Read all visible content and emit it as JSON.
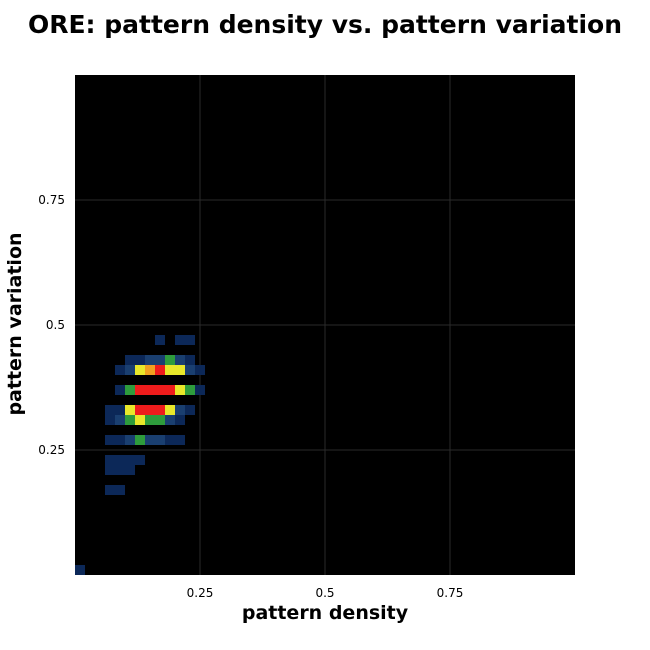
{
  "chart_data": {
    "type": "heatmap",
    "title": "ORE: pattern density vs. pattern variation",
    "xlabel": "pattern density",
    "ylabel": "pattern variation",
    "xlim": [
      0,
      1
    ],
    "ylim": [
      0,
      1
    ],
    "bin_size": 0.02,
    "xticks": [
      0.25,
      0.5,
      0.75
    ],
    "yticks": [
      0.25,
      0.5,
      0.75
    ],
    "xtick_labels": [
      "0.25",
      "0.5",
      "0.75"
    ],
    "ytick_labels": [
      "0.25",
      "0.5",
      "0.75"
    ],
    "grid": true,
    "background_color": "#000000",
    "grid_color": "#2a2a2a",
    "colormap": [
      "#0c2858",
      "#1a3f70",
      "#2e9c3c",
      "#e8e82a",
      "#f0a020",
      "#ee1c1c"
    ],
    "cells": [
      {
        "x": 0.0,
        "y": 0.0,
        "v": 1
      },
      {
        "x": 0.06,
        "y": 0.16,
        "v": 1
      },
      {
        "x": 0.08,
        "y": 0.16,
        "v": 1
      },
      {
        "x": 0.06,
        "y": 0.2,
        "v": 1
      },
      {
        "x": 0.08,
        "y": 0.2,
        "v": 1
      },
      {
        "x": 0.1,
        "y": 0.2,
        "v": 1
      },
      {
        "x": 0.06,
        "y": 0.22,
        "v": 1
      },
      {
        "x": 0.08,
        "y": 0.22,
        "v": 1
      },
      {
        "x": 0.1,
        "y": 0.22,
        "v": 1
      },
      {
        "x": 0.12,
        "y": 0.22,
        "v": 1
      },
      {
        "x": 0.06,
        "y": 0.26,
        "v": 1
      },
      {
        "x": 0.08,
        "y": 0.26,
        "v": 1
      },
      {
        "x": 0.1,
        "y": 0.26,
        "v": 2
      },
      {
        "x": 0.12,
        "y": 0.26,
        "v": 3
      },
      {
        "x": 0.14,
        "y": 0.26,
        "v": 2
      },
      {
        "x": 0.16,
        "y": 0.26,
        "v": 2
      },
      {
        "x": 0.18,
        "y": 0.26,
        "v": 1
      },
      {
        "x": 0.2,
        "y": 0.26,
        "v": 1
      },
      {
        "x": 0.06,
        "y": 0.3,
        "v": 1
      },
      {
        "x": 0.08,
        "y": 0.3,
        "v": 2
      },
      {
        "x": 0.1,
        "y": 0.3,
        "v": 3
      },
      {
        "x": 0.12,
        "y": 0.3,
        "v": 4
      },
      {
        "x": 0.14,
        "y": 0.3,
        "v": 3
      },
      {
        "x": 0.16,
        "y": 0.3,
        "v": 3
      },
      {
        "x": 0.18,
        "y": 0.3,
        "v": 2
      },
      {
        "x": 0.2,
        "y": 0.3,
        "v": 1
      },
      {
        "x": 0.06,
        "y": 0.32,
        "v": 1
      },
      {
        "x": 0.08,
        "y": 0.32,
        "v": 1
      },
      {
        "x": 0.1,
        "y": 0.32,
        "v": 4
      },
      {
        "x": 0.12,
        "y": 0.32,
        "v": 6
      },
      {
        "x": 0.14,
        "y": 0.32,
        "v": 6
      },
      {
        "x": 0.16,
        "y": 0.32,
        "v": 6
      },
      {
        "x": 0.18,
        "y": 0.32,
        "v": 4
      },
      {
        "x": 0.2,
        "y": 0.32,
        "v": 2
      },
      {
        "x": 0.22,
        "y": 0.32,
        "v": 1
      },
      {
        "x": 0.08,
        "y": 0.36,
        "v": 1
      },
      {
        "x": 0.1,
        "y": 0.36,
        "v": 3
      },
      {
        "x": 0.12,
        "y": 0.36,
        "v": 6
      },
      {
        "x": 0.14,
        "y": 0.36,
        "v": 6
      },
      {
        "x": 0.16,
        "y": 0.36,
        "v": 6
      },
      {
        "x": 0.18,
        "y": 0.36,
        "v": 6
      },
      {
        "x": 0.2,
        "y": 0.36,
        "v": 4
      },
      {
        "x": 0.22,
        "y": 0.36,
        "v": 3
      },
      {
        "x": 0.24,
        "y": 0.36,
        "v": 1
      },
      {
        "x": 0.08,
        "y": 0.4,
        "v": 1
      },
      {
        "x": 0.1,
        "y": 0.4,
        "v": 2
      },
      {
        "x": 0.12,
        "y": 0.4,
        "v": 4
      },
      {
        "x": 0.14,
        "y": 0.4,
        "v": 5
      },
      {
        "x": 0.16,
        "y": 0.4,
        "v": 6
      },
      {
        "x": 0.18,
        "y": 0.4,
        "v": 4
      },
      {
        "x": 0.2,
        "y": 0.4,
        "v": 4
      },
      {
        "x": 0.22,
        "y": 0.4,
        "v": 2
      },
      {
        "x": 0.24,
        "y": 0.4,
        "v": 1
      },
      {
        "x": 0.1,
        "y": 0.42,
        "v": 1
      },
      {
        "x": 0.12,
        "y": 0.42,
        "v": 1
      },
      {
        "x": 0.14,
        "y": 0.42,
        "v": 2
      },
      {
        "x": 0.16,
        "y": 0.42,
        "v": 2
      },
      {
        "x": 0.18,
        "y": 0.42,
        "v": 3
      },
      {
        "x": 0.2,
        "y": 0.42,
        "v": 2
      },
      {
        "x": 0.22,
        "y": 0.42,
        "v": 1
      },
      {
        "x": 0.16,
        "y": 0.46,
        "v": 1
      },
      {
        "x": 0.2,
        "y": 0.46,
        "v": 1
      },
      {
        "x": 0.22,
        "y": 0.46,
        "v": 1
      }
    ]
  }
}
